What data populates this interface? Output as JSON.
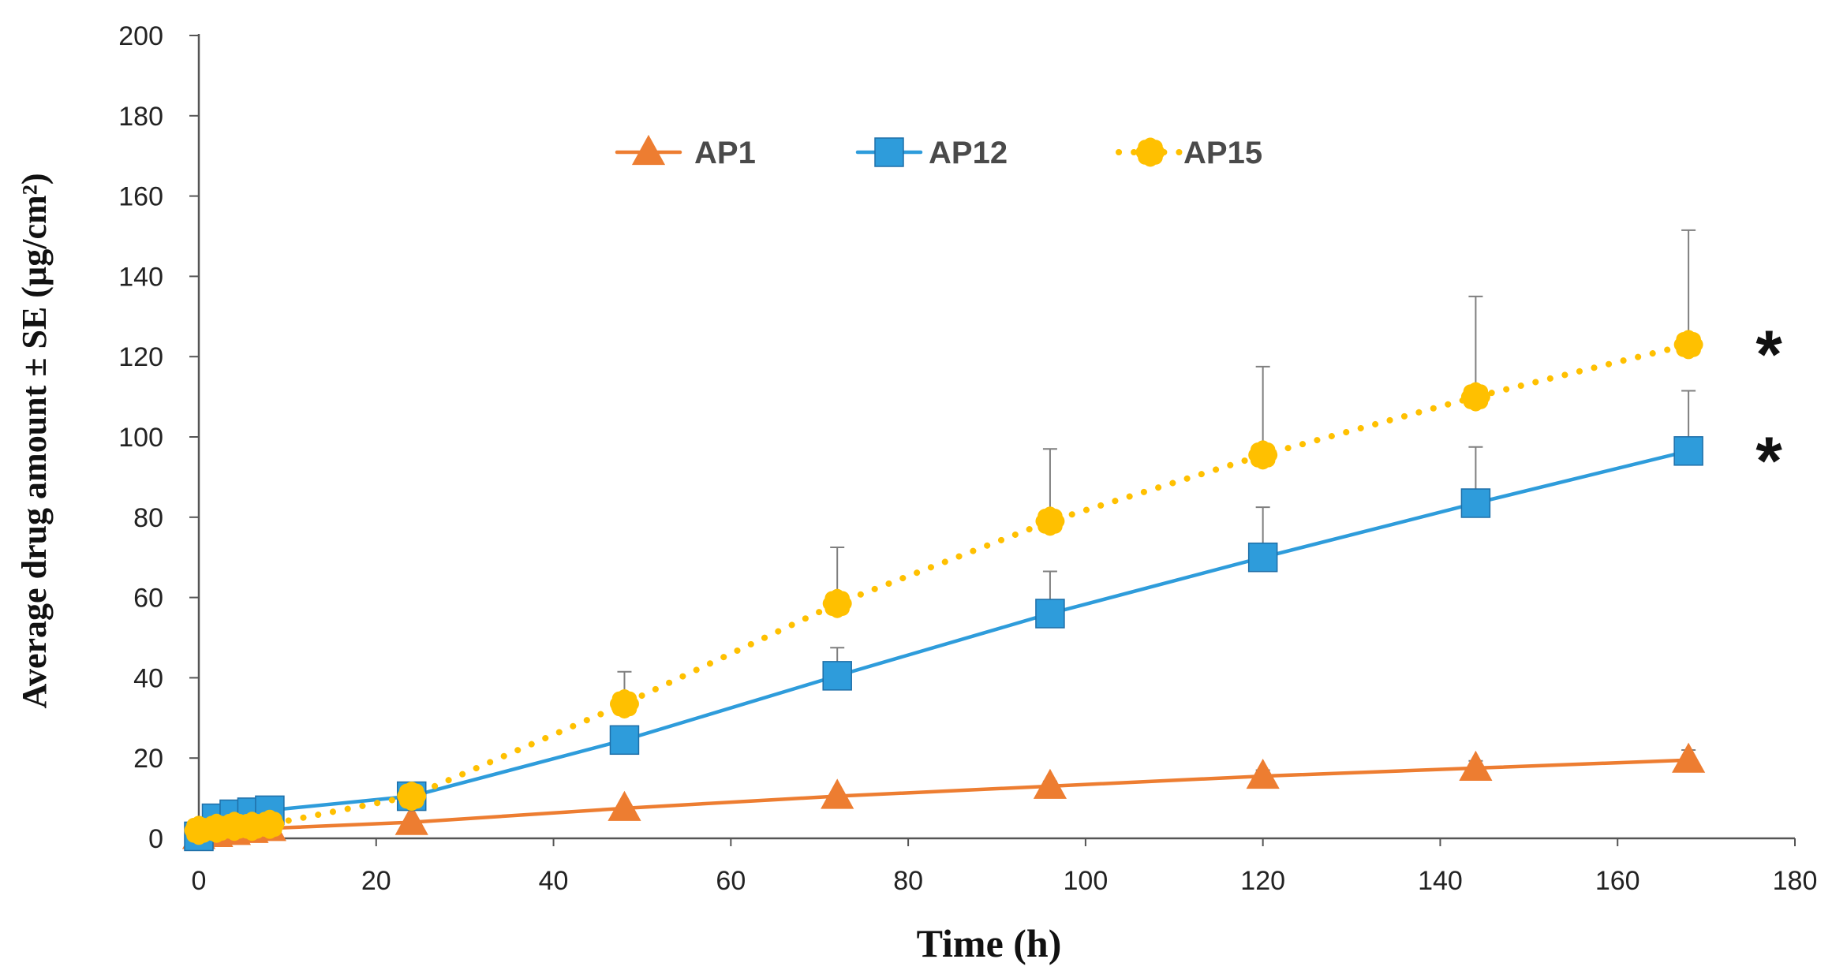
{
  "chart_data": {
    "type": "line",
    "title": "",
    "xlabel": "Time (h)",
    "ylabel": "Average drug amount ± SE (µg/cm²)",
    "xlim": [
      0,
      180
    ],
    "ylim": [
      0,
      200
    ],
    "xticks": [
      0,
      20,
      40,
      60,
      80,
      100,
      120,
      140,
      160,
      180
    ],
    "yticks": [
      0,
      20,
      40,
      60,
      80,
      100,
      120,
      140,
      160,
      180,
      200
    ],
    "grid": false,
    "legend_position": "top-center",
    "series": [
      {
        "name": "AP1",
        "color": "#ED7D31",
        "marker": "triangle",
        "line_style": "solid",
        "x": [
          0,
          2,
          4,
          6,
          8,
          24,
          48,
          72,
          96,
          120,
          144,
          168
        ],
        "y": [
          0.5,
          1,
          1.5,
          2,
          2.5,
          4,
          7.5,
          10.5,
          13,
          15.5,
          17.5,
          19.5
        ],
        "err": [
          0,
          0,
          0,
          0,
          0,
          0.5,
          0.8,
          1,
          1.2,
          1.5,
          1.8,
          2.5
        ]
      },
      {
        "name": "AP12",
        "color": "#2E9CDB",
        "marker": "square",
        "line_style": "solid",
        "x": [
          0,
          2,
          4,
          6,
          8,
          24,
          48,
          72,
          96,
          120,
          144,
          168
        ],
        "y": [
          0.5,
          5,
          6,
          6.5,
          7,
          10.5,
          24.5,
          40.5,
          56,
          70,
          83.5,
          96.5
        ],
        "err": [
          0,
          0.5,
          0.5,
          0.5,
          0.5,
          1,
          3,
          7,
          10.5,
          12.5,
          14,
          15
        ]
      },
      {
        "name": "AP15",
        "color": "#FFC000",
        "marker": "circle",
        "line_style": "dotted",
        "x": [
          0,
          2,
          4,
          6,
          8,
          24,
          48,
          72,
          96,
          120,
          144,
          168
        ],
        "y": [
          2,
          2.5,
          3,
          3,
          3.5,
          10.5,
          33.5,
          58.5,
          79,
          95.5,
          110,
          123
        ],
        "err": [
          0.3,
          0.5,
          0.5,
          0.5,
          0.5,
          1,
          8,
          14,
          18,
          22,
          25,
          28.5
        ]
      }
    ],
    "annotations": [
      {
        "text": "*",
        "series": "AP15"
      },
      {
        "text": "*",
        "series": "AP12"
      }
    ]
  }
}
